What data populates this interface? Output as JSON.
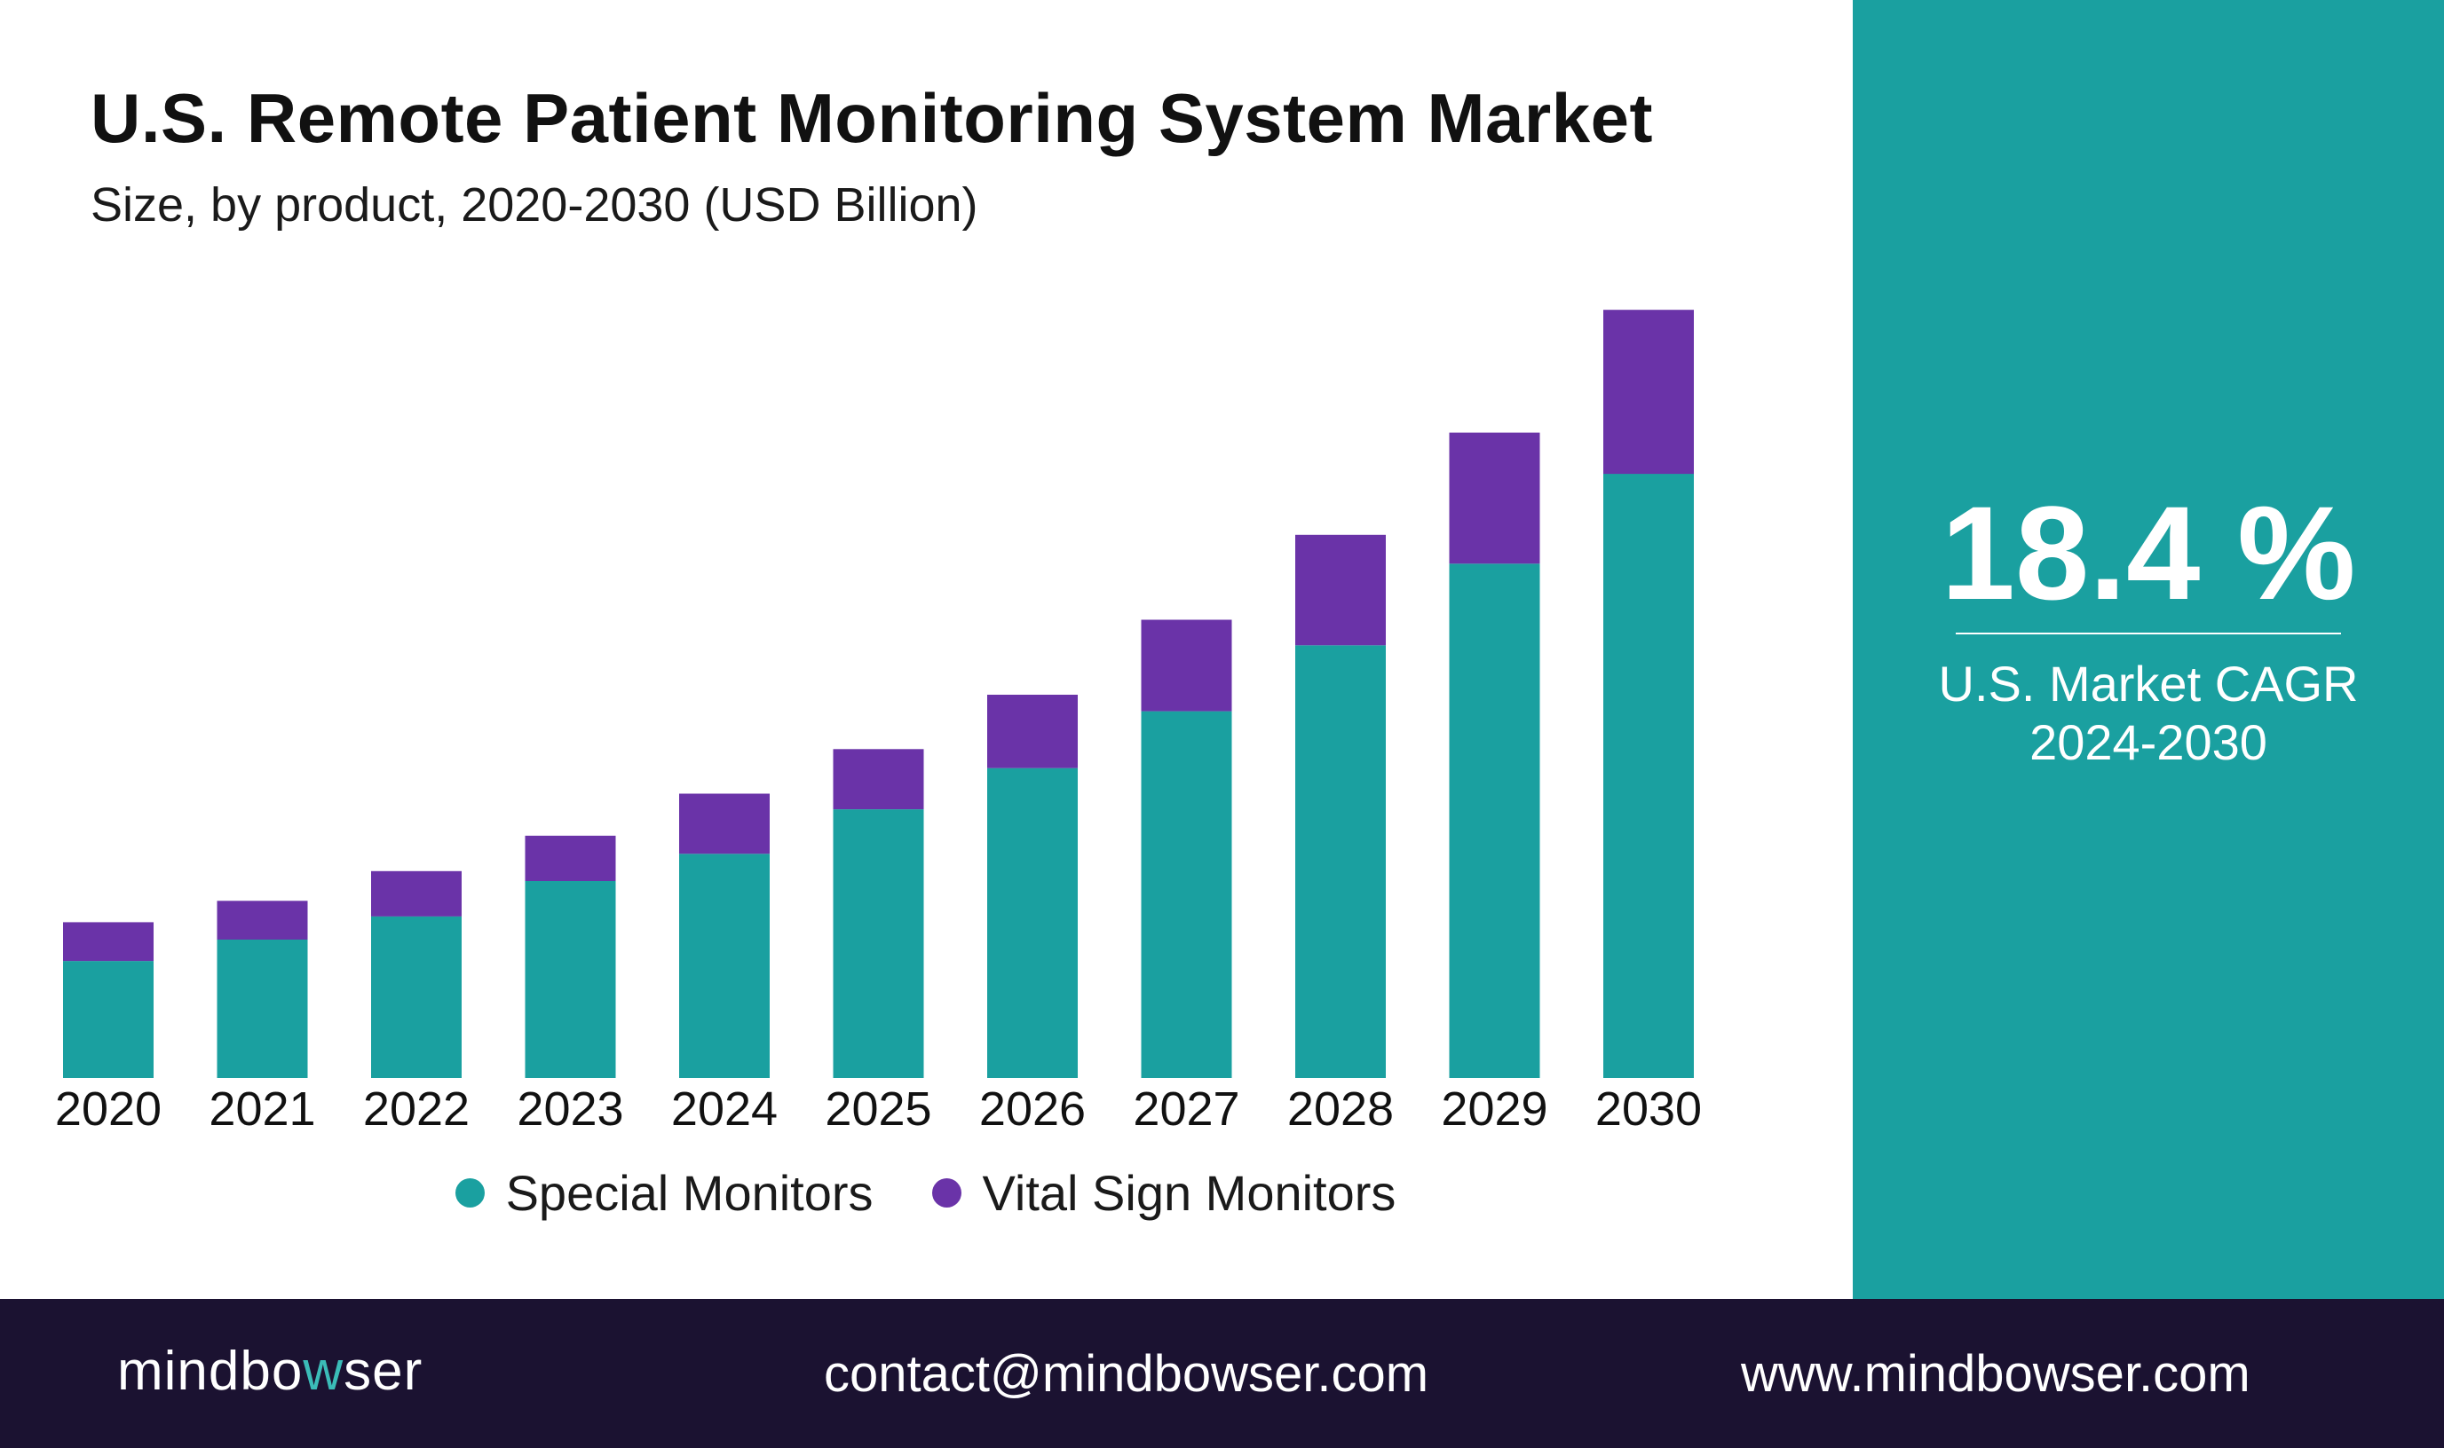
{
  "header": {
    "title": "U.S. Remote Patient Monitoring System Market",
    "subtitle": "Size, by product, 2020-2030 (USD Billion)"
  },
  "colors": {
    "special": "#1aa0a0",
    "vital": "#6a33a8",
    "panel": "#1aa0a0",
    "footer": "#1b1231",
    "logo_accent": "#3bbcb8"
  },
  "chart_data": {
    "type": "bar",
    "stacked": true,
    "categories": [
      "2020",
      "2021",
      "2022",
      "2023",
      "2024",
      "2025",
      "2026",
      "2027",
      "2028",
      "2029",
      "2030"
    ],
    "series": [
      {
        "name": "Special Monitors",
        "values": [
          14.2,
          16.8,
          19.6,
          23.9,
          27.2,
          32.6,
          37.6,
          44.5,
          52.5,
          62.4,
          73.3
        ]
      },
      {
        "name": "Vital Sign Monitors",
        "values": [
          4.7,
          4.7,
          5.5,
          5.5,
          7.3,
          7.3,
          8.9,
          11.1,
          13.4,
          15.9,
          19.9
        ]
      }
    ],
    "ylim": [
      0,
      100
    ],
    "grid": false,
    "legend": "bottom"
  },
  "legend": {
    "items": [
      {
        "label": "Special Monitors",
        "color": "#1aa0a0"
      },
      {
        "label": "Vital Sign Monitors",
        "color": "#6a33a8"
      }
    ]
  },
  "side_panel": {
    "cagr": "18.4 %",
    "label_line1": "U.S. Market CAGR",
    "label_line2": "2024-2030"
  },
  "footer": {
    "logo_part1": "mindbo",
    "logo_accent": "w",
    "logo_part2": "ser",
    "email": "contact@mindbowser.com",
    "website": "www.mindbowser.com"
  }
}
